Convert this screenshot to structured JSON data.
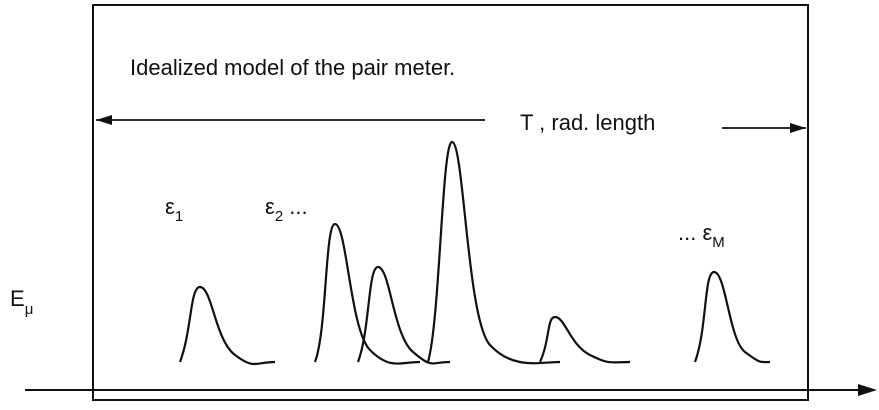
{
  "title": "Idealized model of the pair meter.",
  "dimension_label": "T , rad. length",
  "peak_labels": [
    {
      "symbol": "ε",
      "subscript": "1"
    },
    {
      "symbol": "ε",
      "subscript": "2",
      "suffix": " ..."
    },
    {
      "prefix": "... ",
      "symbol": "ε",
      "subscript": "M"
    }
  ],
  "axis_label": {
    "symbol": "E",
    "subscript": "μ"
  }
}
